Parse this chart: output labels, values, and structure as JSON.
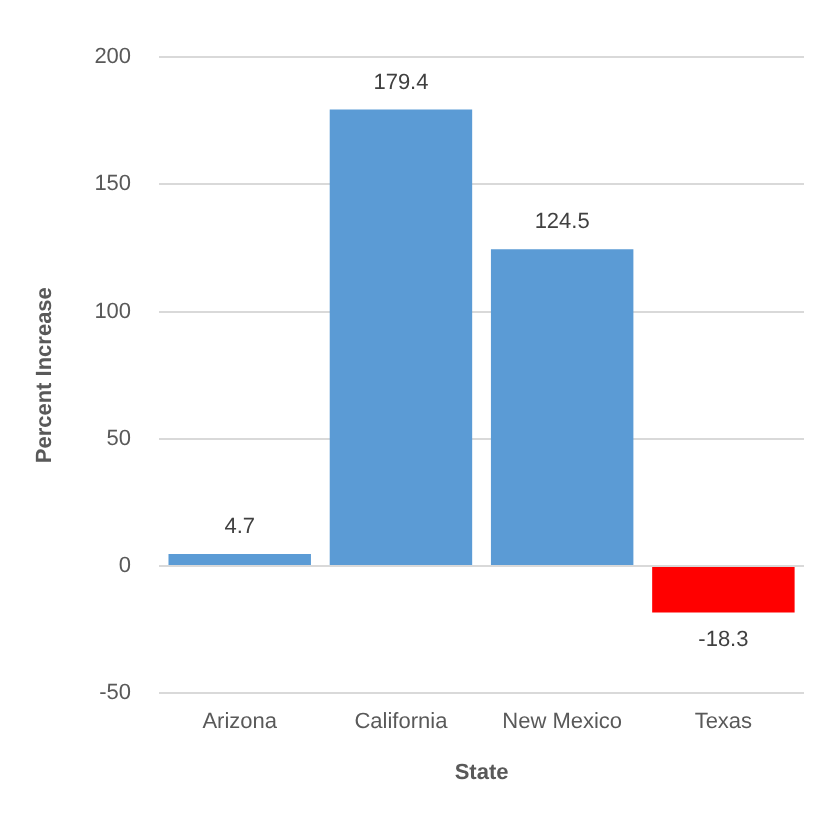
{
  "chart_data": {
    "type": "bar",
    "xlabel": "State",
    "ylabel": "Percent Increase",
    "categories": [
      "Arizona",
      "California",
      "New Mexico",
      "Texas"
    ],
    "values": [
      4.7,
      179.4,
      124.5,
      -18.3
    ],
    "colors": [
      "#5b9bd5",
      "#5b9bd5",
      "#5b9bd5",
      "#ff0000"
    ],
    "ylim": [
      -50,
      200
    ],
    "yticks": [
      -50,
      0,
      50,
      100,
      150,
      200
    ],
    "grid": "y",
    "data_labels": true,
    "legend": false
  }
}
